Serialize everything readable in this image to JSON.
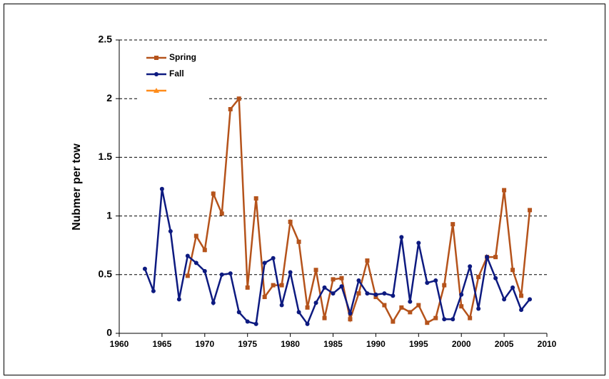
{
  "chart_data": {
    "type": "line",
    "y_label": "Nubmer per tow",
    "x": [
      1963,
      1964,
      1965,
      1966,
      1967,
      1968,
      1969,
      1970,
      1971,
      1972,
      1973,
      1974,
      1975,
      1976,
      1977,
      1978,
      1979,
      1980,
      1981,
      1982,
      1983,
      1984,
      1985,
      1986,
      1987,
      1988,
      1989,
      1990,
      1991,
      1992,
      1993,
      1994,
      1995,
      1996,
      1997,
      1998,
      1999,
      2000,
      2001,
      2002,
      2003,
      2004,
      2005,
      2006,
      2007,
      2008
    ],
    "series": [
      {
        "name": "Spring",
        "color": "#b5531b",
        "marker": "square",
        "values": [
          null,
          null,
          null,
          null,
          null,
          0.49,
          0.83,
          0.71,
          1.19,
          1.02,
          1.91,
          2.0,
          0.39,
          1.15,
          0.31,
          0.41,
          0.41,
          0.95,
          0.78,
          0.22,
          0.54,
          0.13,
          0.46,
          0.47,
          0.12,
          0.34,
          0.62,
          0.31,
          0.24,
          0.1,
          0.22,
          0.18,
          0.24,
          0.09,
          0.13,
          0.41,
          0.93,
          0.23,
          0.13,
          0.48,
          0.65,
          0.65,
          1.22,
          0.54,
          0.32,
          1.05
        ]
      },
      {
        "name": "Fall",
        "color": "#0d1a80",
        "marker": "circle",
        "values": [
          0.55,
          0.36,
          1.23,
          0.87,
          0.29,
          0.66,
          0.6,
          0.53,
          0.26,
          0.5,
          0.51,
          0.18,
          0.1,
          0.08,
          0.6,
          0.64,
          0.24,
          0.52,
          0.18,
          0.08,
          0.26,
          0.39,
          0.34,
          0.4,
          0.17,
          0.45,
          0.34,
          0.33,
          0.34,
          0.32,
          0.82,
          0.27,
          0.77,
          0.43,
          0.45,
          0.12,
          0.12,
          0.33,
          0.57,
          0.21,
          0.65,
          0.47,
          0.29,
          0.39,
          0.2,
          0.29
        ]
      },
      {
        "color": "#ff8c1a",
        "marker": "triangle",
        "values": [
          null,
          null,
          null,
          null,
          null,
          null,
          null,
          null,
          null,
          null,
          null,
          null,
          null,
          null,
          null,
          null,
          null,
          null,
          null,
          null,
          null,
          null,
          null,
          null,
          null,
          null,
          null,
          null,
          null,
          null,
          null,
          null,
          null,
          null,
          null,
          null,
          null,
          null,
          null,
          null,
          null,
          null,
          null,
          null,
          null,
          null
        ]
      }
    ],
    "xlim": [
      1960,
      2010
    ],
    "xticks": [
      1960,
      1965,
      1970,
      1975,
      1980,
      1985,
      1990,
      1995,
      2000,
      2005,
      2010
    ],
    "ylim": [
      0,
      2.5
    ],
    "yticks": [
      0,
      0.5,
      1,
      1.5,
      2,
      2.5
    ],
    "grid": true,
    "legend": "upper left"
  }
}
